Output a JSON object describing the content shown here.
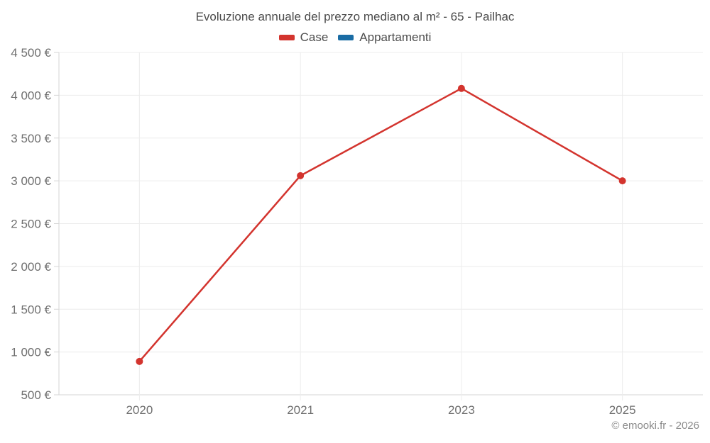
{
  "header": {
    "title": "Evoluzione annuale del prezzo mediano al m² - 65 - Pailhac"
  },
  "legend": {
    "items": [
      {
        "id": "case",
        "label": "Case",
        "color": "#d3342e"
      },
      {
        "id": "appartamenti",
        "label": "Appartamenti",
        "color": "#1a6ca4"
      }
    ]
  },
  "footer": {
    "copyright": "© emooki.fr - 2026"
  },
  "colors": {
    "case_red": "#d3342e",
    "appartamenti_blue": "#1a6ca4",
    "gridline": "#ececec",
    "axis_line": "#d6d6d6",
    "tick_text": "#6f6f6f",
    "title_text": "#4a4a4a",
    "copyright_text": "#8b8b8b",
    "background": "#ffffff"
  },
  "chart_data": {
    "type": "line",
    "title": "Evoluzione annuale del prezzo mediano al m² - 65 - Pailhac",
    "categories": [
      "2020",
      "2021",
      "2023",
      "2025"
    ],
    "series": [
      {
        "name": "Case",
        "color": "#d3342e",
        "values": [
          890,
          3060,
          4080,
          3000
        ]
      },
      {
        "name": "Appartamenti",
        "color": "#1a6ca4",
        "values": []
      }
    ],
    "xlabel": "",
    "ylabel": "",
    "ylim": [
      500,
      4500
    ],
    "ytick_step": 500,
    "ytick_format": "{value} €",
    "grid": true,
    "legend_position": "top",
    "marker": "circle",
    "marker_radius": 5,
    "line_width": 2.5
  }
}
